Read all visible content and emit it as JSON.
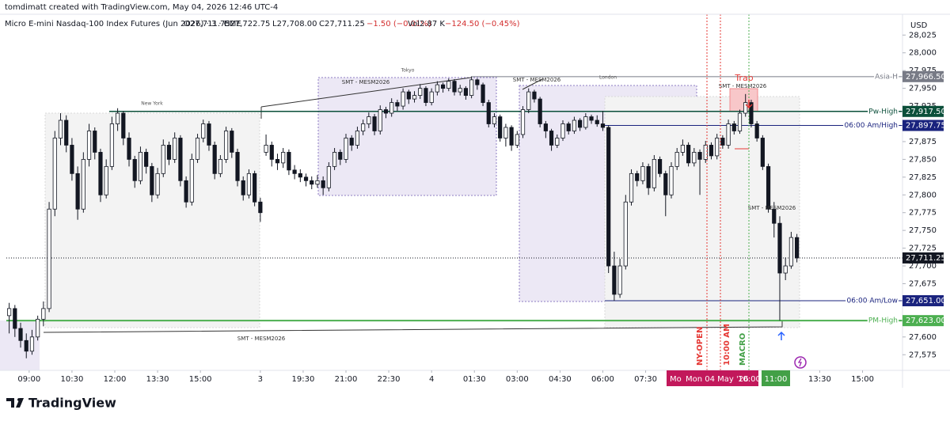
{
  "credit": "tomdimatt created with TradingView.com, May 04, 2026 12:46 UTC-4",
  "header": [
    "Micro E-mini Nasdaq-100 Index Futures (Jun 2026) · 3 · CME",
    "O27,711.75",
    "H27,722.75",
    "L27,708.00",
    "C27,711.25",
    "−1.50 (−0.01%)",
    "Vol2.87 K",
    "−124.50 (−0.45%)"
  ],
  "currency": "USD",
  "brand": "TradingView",
  "chart_data": {
    "type": "candlestick",
    "up_color": "#ffffff",
    "down_color": "#131722",
    "wick_color": "#131722",
    "grid": false,
    "xlim": [
      0,
      157
    ],
    "ylim": [
      27553,
      28046.5
    ],
    "yticks": [
      {
        "value": 27575,
        "label": "27,575"
      },
      {
        "value": 27600,
        "label": "27,600"
      },
      {
        "value": 27675,
        "label": "27,675"
      },
      {
        "value": 27700,
        "label": "27,700"
      },
      {
        "value": 27725,
        "label": "27,725"
      },
      {
        "value": 27750,
        "label": "27,750"
      },
      {
        "value": 27775,
        "label": "27,775"
      },
      {
        "value": 27800,
        "label": "27,800"
      },
      {
        "value": 27825,
        "label": "27,825"
      },
      {
        "value": 27850,
        "label": "27,850"
      },
      {
        "value": 27875,
        "label": "27,875"
      },
      {
        "value": 27925,
        "label": "27,925"
      },
      {
        "value": 27950,
        "label": "27,950"
      },
      {
        "value": 27975,
        "label": "27,975"
      },
      {
        "value": 28000,
        "label": "28,000"
      },
      {
        "value": 28025,
        "label": "28,025"
      }
    ],
    "xticks": [
      {
        "value": 4,
        "label": "09:00"
      },
      {
        "value": 11.5,
        "label": "10:30"
      },
      {
        "value": 19,
        "label": "12:00"
      },
      {
        "value": 26.5,
        "label": "13:30"
      },
      {
        "value": 34,
        "label": "15:00"
      },
      {
        "value": 44.5,
        "label": "3"
      },
      {
        "value": 52,
        "label": "19:30"
      },
      {
        "value": 59.5,
        "label": "21:00"
      },
      {
        "value": 67,
        "label": "22:30"
      },
      {
        "value": 74.5,
        "label": "4"
      },
      {
        "value": 82,
        "label": "01:30"
      },
      {
        "value": 89.5,
        "label": "03:00"
      },
      {
        "value": 97,
        "label": "04:30"
      },
      {
        "value": 104.5,
        "label": "06:00"
      },
      {
        "value": 112,
        "label": "07:30"
      },
      {
        "value": 142.5,
        "label": "13:30"
      },
      {
        "value": 150,
        "label": "15:00"
      }
    ],
    "crosshair_labels": [
      "Mo",
      "Mon 04 May '26",
      "10:00",
      "11:00"
    ],
    "levels": [
      {
        "name": "Asia-H",
        "value": 27966.5,
        "label": "27,966.50",
        "color": "#787b86"
      },
      {
        "name": "Pw-High",
        "value": 27917.5,
        "label": "27,917.50",
        "color": "#0b4f3a"
      },
      {
        "name": "06:00 Am/High",
        "value": 27897.75,
        "label": "27,897.75",
        "color": "#1a237e"
      },
      {
        "name": "06:00 Am/Low",
        "value": 27651,
        "label": "27,651.00",
        "color": "#1a237e"
      },
      {
        "name": "PM-High",
        "value": 27623,
        "label": "27,623.00",
        "color": "#4caf50"
      }
    ],
    "last": {
      "value": 27711.25,
      "label": "27,711.25",
      "color": "#131722"
    },
    "sessions": [
      "New York",
      "Tokyo",
      "London"
    ],
    "annotations": [
      "SMT - MESM2026",
      "SMT - MESM2026",
      "SMT - MESM2026",
      "SMT - MESM2026",
      "SMT - MESM2026",
      "Trap"
    ],
    "markers": [
      "NY-OPEN",
      "10:00 AM",
      "MACRO"
    ],
    "ohlc": [
      [
        27630,
        27648,
        27605,
        27640
      ],
      [
        27640,
        27645,
        27600,
        27612
      ],
      [
        27612,
        27620,
        27585,
        27595
      ],
      [
        27595,
        27605,
        27570,
        27580
      ],
      [
        27580,
        27610,
        27575,
        27600
      ],
      [
        27600,
        27630,
        27595,
        27625
      ],
      [
        27625,
        27650,
        27615,
        27640
      ],
      [
        27640,
        27790,
        27635,
        27780
      ],
      [
        27780,
        27890,
        27770,
        27880
      ],
      [
        27880,
        27915,
        27870,
        27905
      ],
      [
        27905,
        27912,
        27860,
        27870
      ],
      [
        27870,
        27880,
        27820,
        27830
      ],
      [
        27830,
        27840,
        27765,
        27780
      ],
      [
        27780,
        27860,
        27775,
        27850
      ],
      [
        27850,
        27900,
        27840,
        27890
      ],
      [
        27890,
        27895,
        27850,
        27860
      ],
      [
        27860,
        27865,
        27790,
        27800
      ],
      [
        27800,
        27850,
        27795,
        27840
      ],
      [
        27840,
        27910,
        27835,
        27900
      ],
      [
        27900,
        27922,
        27890,
        27915
      ],
      [
        27915,
        27918,
        27870,
        27880
      ],
      [
        27880,
        27888,
        27840,
        27850
      ],
      [
        27850,
        27855,
        27810,
        27820
      ],
      [
        27820,
        27868,
        27815,
        27860
      ],
      [
        27860,
        27865,
        27830,
        27840
      ],
      [
        27840,
        27845,
        27790,
        27800
      ],
      [
        27800,
        27838,
        27795,
        27830
      ],
      [
        27830,
        27878,
        27825,
        27870
      ],
      [
        27870,
        27875,
        27842,
        27850
      ],
      [
        27850,
        27888,
        27845,
        27880
      ],
      [
        27880,
        27884,
        27812,
        27820
      ],
      [
        27820,
        27826,
        27782,
        27790
      ],
      [
        27790,
        27858,
        27785,
        27850
      ],
      [
        27850,
        27886,
        27845,
        27880
      ],
      [
        27880,
        27906,
        27874,
        27900
      ],
      [
        27900,
        27904,
        27862,
        27870
      ],
      [
        27870,
        27875,
        27822,
        27830
      ],
      [
        27830,
        27856,
        27825,
        27850
      ],
      [
        27850,
        27896,
        27845,
        27890
      ],
      [
        27890,
        27894,
        27852,
        27860
      ],
      [
        27860,
        27865,
        27812,
        27820
      ],
      [
        27820,
        27826,
        27792,
        27800
      ],
      [
        27800,
        27836,
        27795,
        27830
      ],
      [
        27830,
        27834,
        27784,
        27790
      ],
      [
        27790,
        27796,
        27762,
        27775
      ],
      [
        27860,
        27885,
        27855,
        27870
      ],
      [
        27870,
        27875,
        27840,
        27850
      ],
      [
        27850,
        27858,
        27835,
        27845
      ],
      [
        27845,
        27866,
        27838,
        27860
      ],
      [
        27860,
        27864,
        27828,
        27835
      ],
      [
        27835,
        27842,
        27822,
        27830
      ],
      [
        27830,
        27836,
        27818,
        27825
      ],
      [
        27825,
        27830,
        27812,
        27820
      ],
      [
        27820,
        27826,
        27808,
        27815
      ],
      [
        27815,
        27828,
        27810,
        27820
      ],
      [
        27820,
        27826,
        27800,
        27810
      ],
      [
        27810,
        27846,
        27805,
        27840
      ],
      [
        27840,
        27866,
        27835,
        27860
      ],
      [
        27860,
        27864,
        27842,
        27850
      ],
      [
        27850,
        27886,
        27845,
        27880
      ],
      [
        27880,
        27884,
        27862,
        27870
      ],
      [
        27870,
        27896,
        27865,
        27890
      ],
      [
        27890,
        27906,
        27884,
        27900
      ],
      [
        27900,
        27916,
        27894,
        27910
      ],
      [
        27910,
        27914,
        27884,
        27890
      ],
      [
        27890,
        27926,
        27885,
        27920
      ],
      [
        27920,
        27924,
        27908,
        27915
      ],
      [
        27915,
        27936,
        27910,
        27930
      ],
      [
        27930,
        27934,
        27918,
        27925
      ],
      [
        27925,
        27950,
        27920,
        27945
      ],
      [
        27945,
        27948,
        27928,
        27935
      ],
      [
        27935,
        27946,
        27930,
        27940
      ],
      [
        27940,
        27956,
        27935,
        27950
      ],
      [
        27950,
        27953,
        27925,
        27930
      ],
      [
        27930,
        27950,
        27926,
        27945
      ],
      [
        27945,
        27960,
        27940,
        27955
      ],
      [
        27955,
        27958,
        27944,
        27950
      ],
      [
        27950,
        27964,
        27946,
        27960
      ],
      [
        27960,
        27963,
        27940,
        27945
      ],
      [
        27945,
        27955,
        27940,
        27950
      ],
      [
        27950,
        27953,
        27934,
        27940
      ],
      [
        27940,
        27966.5,
        27936,
        27962
      ],
      [
        27962,
        27964,
        27948,
        27955
      ],
      [
        27955,
        27958,
        27925,
        27930
      ],
      [
        27930,
        27934,
        27895,
        27900
      ],
      [
        27900,
        27915,
        27895,
        27910
      ],
      [
        27910,
        27913,
        27875,
        27880
      ],
      [
        27880,
        27900,
        27868,
        27895
      ],
      [
        27895,
        27898,
        27862,
        27870
      ],
      [
        27870,
        27890,
        27866,
        27885
      ],
      [
        27885,
        27925,
        27880,
        27920
      ],
      [
        27920,
        27950,
        27915,
        27945
      ],
      [
        27945,
        27948,
        27930,
        27935
      ],
      [
        27935,
        27938,
        27895,
        27900
      ],
      [
        27900,
        27904,
        27880,
        27890
      ],
      [
        27890,
        27893,
        27862,
        27870
      ],
      [
        27870,
        27885,
        27866,
        27880
      ],
      [
        27880,
        27905,
        27876,
        27900
      ],
      [
        27900,
        27903,
        27885,
        27890
      ],
      [
        27890,
        27910,
        27886,
        27905
      ],
      [
        27905,
        27908,
        27890,
        27895
      ],
      [
        27895,
        27915,
        27892,
        27910
      ],
      [
        27910,
        27913,
        27900,
        27905
      ],
      [
        27905,
        27912,
        27896,
        27900
      ],
      [
        27900,
        27918,
        27890,
        27895
      ],
      [
        27895,
        27898,
        27690,
        27700
      ],
      [
        27700,
        27720,
        27651,
        27660
      ],
      [
        27660,
        27710,
        27655,
        27700
      ],
      [
        27700,
        27800,
        27695,
        27790
      ],
      [
        27790,
        27836,
        27785,
        27830
      ],
      [
        27830,
        27834,
        27812,
        27820
      ],
      [
        27820,
        27846,
        27815,
        27840
      ],
      [
        27840,
        27844,
        27800,
        27810
      ],
      [
        27810,
        27856,
        27805,
        27850
      ],
      [
        27850,
        27854,
        27825,
        27830
      ],
      [
        27830,
        27834,
        27770,
        27800
      ],
      [
        27800,
        27846,
        27795,
        27840
      ],
      [
        27840,
        27866,
        27835,
        27860
      ],
      [
        27860,
        27878,
        27855,
        27870
      ],
      [
        27870,
        27874,
        27840,
        27845
      ],
      [
        27845,
        27866,
        27840,
        27860
      ],
      [
        27860,
        27864,
        27800,
        27850
      ],
      [
        27850,
        27876,
        27845,
        27870
      ],
      [
        27870,
        27874,
        27850,
        27855
      ],
      [
        27855,
        27886,
        27850,
        27880
      ],
      [
        27880,
        27884,
        27865,
        27870
      ],
      [
        27870,
        27906,
        27865,
        27900
      ],
      [
        27900,
        27904,
        27885,
        27890
      ],
      [
        27890,
        27920,
        27886,
        27915
      ],
      [
        27915,
        27942,
        27910,
        27930
      ],
      [
        27930,
        27934,
        27895,
        27900
      ],
      [
        27900,
        27904,
        27875,
        27880
      ],
      [
        27880,
        27884,
        27835,
        27840
      ],
      [
        27840,
        27844,
        27775,
        27780
      ],
      [
        27780,
        27790,
        27740,
        27760
      ],
      [
        27760,
        27770,
        27623,
        27690
      ],
      [
        27690,
        27712,
        27680,
        27700
      ],
      [
        27700,
        27748,
        27696,
        27740
      ],
      [
        27740,
        27745,
        27705,
        27711.25
      ]
    ]
  }
}
